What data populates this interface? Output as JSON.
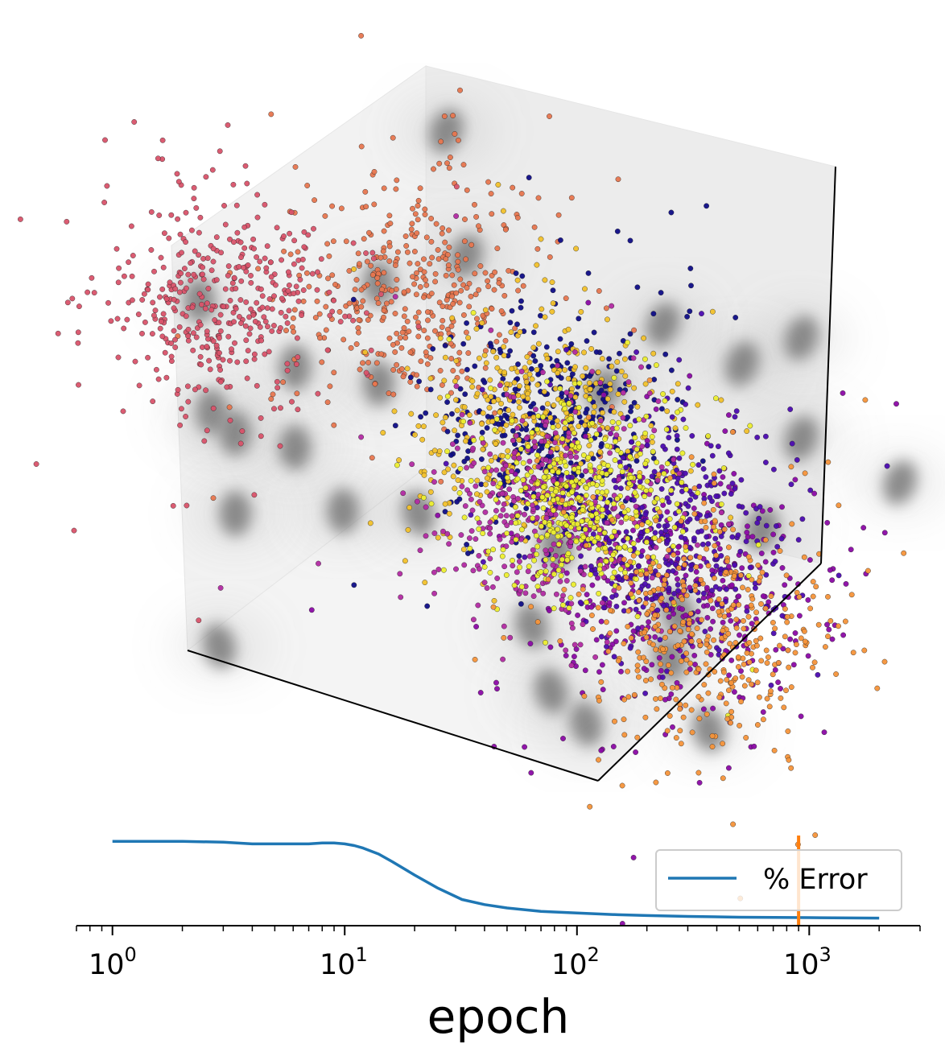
{
  "chart_data": [
    {
      "type": "scatter",
      "subtype": "3d-embedding",
      "title": "",
      "grid": false,
      "axes_ticks": false,
      "projection_shadows": true,
      "clusters": [
        {
          "color": "#d9536a",
          "center": [
            0.95,
            0.05,
            0.85
          ],
          "spread": 0.12
        },
        {
          "color": "#e7764f",
          "center": [
            0.2,
            0.1,
            0.55
          ],
          "spread": 0.13
        },
        {
          "color": "#f2c12b",
          "center": [
            0.55,
            0.6,
            0.5
          ],
          "spread": 0.12
        },
        {
          "color": "#ecee2f",
          "center": [
            0.9,
            0.95,
            0.55
          ],
          "spread": 0.1
        },
        {
          "color": "#b22aa2",
          "center": [
            0.8,
            0.8,
            0.45
          ],
          "spread": 0.12
        },
        {
          "color": "#0f0d86",
          "center": [
            0.2,
            0.45,
            0.3
          ],
          "spread": 0.12
        },
        {
          "color": "#4c0bb0",
          "center": [
            0.55,
            0.95,
            0.3
          ],
          "spread": 0.12
        },
        {
          "color": "#f5943a",
          "center": [
            0.8,
            1.2,
            0.25
          ],
          "spread": 0.13
        },
        {
          "color": "#8b0aa5",
          "center": [
            0.35,
            0.85,
            0.05
          ],
          "spread": 0.14
        }
      ]
    },
    {
      "type": "line",
      "title": "",
      "xlabel": "epoch",
      "ylabel": "",
      "xscale": "log",
      "xlim": [
        0.7,
        3000
      ],
      "ylim": [
        0,
        1.05
      ],
      "xticks": [
        1,
        10,
        100,
        1000
      ],
      "xtick_labels": [
        {
          "base": "10",
          "exp": "0"
        },
        {
          "base": "10",
          "exp": "1"
        },
        {
          "base": "10",
          "exp": "2"
        },
        {
          "base": "10",
          "exp": "3"
        }
      ],
      "marker_line": {
        "x": 900,
        "color": "#ff7f0e"
      },
      "legend_position": "lower-right",
      "series": [
        {
          "name": "% Error",
          "color": "#1f77b4",
          "x": [
            1,
            2,
            3,
            4,
            5,
            6,
            7,
            8,
            9,
            10,
            11,
            12,
            14,
            16,
            20,
            25,
            32,
            40,
            50,
            70,
            100,
            150,
            200,
            300,
            500,
            1000,
            2000
          ],
          "y": [
            1.0,
            1.0,
            0.99,
            0.97,
            0.97,
            0.97,
            0.97,
            0.98,
            0.98,
            0.97,
            0.95,
            0.92,
            0.85,
            0.76,
            0.6,
            0.45,
            0.31,
            0.25,
            0.21,
            0.17,
            0.15,
            0.13,
            0.12,
            0.11,
            0.1,
            0.095,
            0.09
          ]
        }
      ]
    }
  ]
}
